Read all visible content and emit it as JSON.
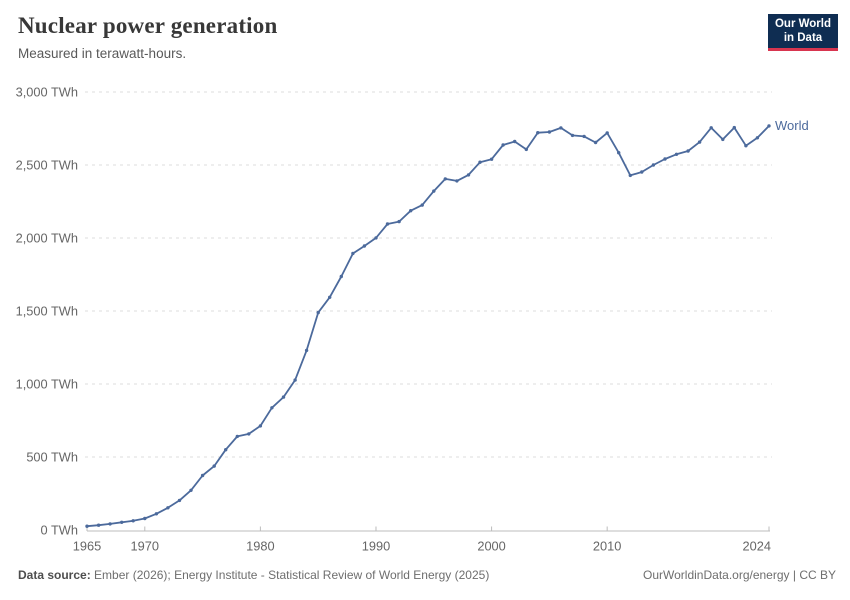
{
  "header": {
    "title": "Nuclear power generation",
    "subtitle": "Measured in terawatt-hours."
  },
  "logo": {
    "line1": "Our World",
    "line2": "in Data",
    "bg_color": "#0f2d52",
    "accent_color": "#d8354f"
  },
  "chart_data": {
    "type": "line",
    "title": "Nuclear power generation",
    "unit": "TWh",
    "xlabel": "",
    "ylabel": "",
    "xlim": [
      1965,
      2024
    ],
    "ylim": [
      0,
      3000
    ],
    "grid": "horizontal-dashed",
    "legend_position": "end-of-line",
    "x_ticks": [
      {
        "value": 1965,
        "label": "1965"
      },
      {
        "value": 1970,
        "label": "1970"
      },
      {
        "value": 1980,
        "label": "1980"
      },
      {
        "value": 1990,
        "label": "1990"
      },
      {
        "value": 2000,
        "label": "2000"
      },
      {
        "value": 2010,
        "label": "2010"
      },
      {
        "value": 2024,
        "label": "2024"
      }
    ],
    "y_ticks": [
      {
        "value": 0,
        "label": "0 TWh"
      },
      {
        "value": 500,
        "label": "500 TWh"
      },
      {
        "value": 1000,
        "label": "1,000 TWh"
      },
      {
        "value": 1500,
        "label": "1,500 TWh"
      },
      {
        "value": 2000,
        "label": "2,000 TWh"
      },
      {
        "value": 2500,
        "label": "2,500 TWh"
      },
      {
        "value": 3000,
        "label": "3,000 TWh"
      }
    ],
    "series": [
      {
        "name": "World",
        "color": "#4c6a9c",
        "x": [
          1965,
          1966,
          1967,
          1968,
          1969,
          1970,
          1971,
          1972,
          1973,
          1974,
          1975,
          1976,
          1977,
          1978,
          1979,
          1980,
          1981,
          1982,
          1983,
          1984,
          1985,
          1986,
          1987,
          1988,
          1989,
          1990,
          1991,
          1992,
          1993,
          1994,
          1995,
          1996,
          1997,
          1998,
          1999,
          2000,
          2001,
          2002,
          2003,
          2004,
          2005,
          2006,
          2007,
          2008,
          2009,
          2010,
          2011,
          2012,
          2013,
          2014,
          2015,
          2016,
          2017,
          2018,
          2019,
          2020,
          2021,
          2022,
          2023,
          2024
        ],
        "values": [
          26,
          33,
          42,
          53,
          63,
          79,
          111,
          152,
          203,
          272,
          373,
          438,
          550,
          641,
          658,
          713,
          837,
          910,
          1027,
          1230,
          1489,
          1594,
          1736,
          1894,
          1945,
          2001,
          2096,
          2112,
          2187,
          2225,
          2321,
          2405,
          2391,
          2432,
          2519,
          2540,
          2637,
          2661,
          2607,
          2721,
          2726,
          2754,
          2703,
          2696,
          2654,
          2720,
          2584,
          2429,
          2452,
          2500,
          2541,
          2573,
          2596,
          2657,
          2755,
          2675,
          2756,
          2632,
          2686,
          2768
        ]
      }
    ]
  },
  "footer": {
    "source_label": "Data source:",
    "source_text": "Ember (2026); Energy Institute - Statistical Review of World Energy (2025)",
    "right_text": "OurWorldinData.org/energy | CC BY"
  },
  "style": {
    "grid_color": "#dedede",
    "axis_color": "#bcbcbc",
    "tick_label_color": "#666666"
  }
}
